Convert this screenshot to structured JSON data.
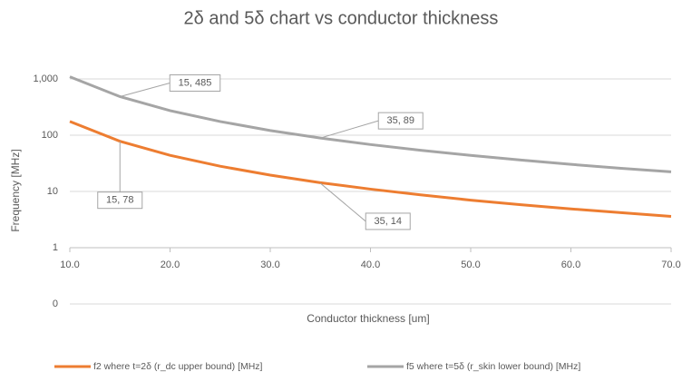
{
  "chart_data": {
    "type": "line",
    "title": "2δ and 5δ chart vs conductor thickness",
    "x_label": "Conductor thickness [um]",
    "y_label": "Frequency [MHz]",
    "x": [
      10,
      15,
      20,
      25,
      30,
      35,
      40,
      45,
      50,
      55,
      60,
      65,
      70
    ],
    "series": [
      {
        "name": "f2 where t=2δ (r_dc upper bound) [MHz]",
        "color": "#ed7d31",
        "values": [
          175.5,
          78,
          43.9,
          28.1,
          19.5,
          14.3,
          11.0,
          8.7,
          7.0,
          5.8,
          4.9,
          4.2,
          3.6
        ]
      },
      {
        "name": "f5 where t=5δ (r_skin lower bound)  [MHz]",
        "color": "#a5a5a5",
        "values": [
          1091,
          485,
          273,
          175,
          121,
          89,
          68.2,
          53.9,
          43.7,
          36.1,
          30.3,
          25.8,
          22.3
        ]
      }
    ],
    "xlim": [
      10,
      70
    ],
    "xticks": [
      {
        "value": 10,
        "label": "10.0"
      },
      {
        "value": 20,
        "label": "20.0"
      },
      {
        "value": 30,
        "label": "30.0"
      },
      {
        "value": 40,
        "label": "40.0"
      },
      {
        "value": 50,
        "label": "50.0"
      },
      {
        "value": 60,
        "label": "60.0"
      },
      {
        "value": 70,
        "label": "70.0"
      }
    ],
    "ylim": [
      0.1,
      1000
    ],
    "y_log": true,
    "yticks": [
      {
        "value": 0.1,
        "label": "0"
      },
      1,
      10,
      100,
      {
        "value": 1000,
        "label": "1,000"
      }
    ],
    "x_axis_crosses": 1,
    "grid": true,
    "legend_position": "bottom",
    "annotations": [
      {
        "label": "15, 485",
        "x": 15,
        "y": 485
      },
      {
        "label": "35, 89",
        "x": 35,
        "y": 89
      },
      {
        "label": "15, 78",
        "x": 15,
        "y": 78
      },
      {
        "label": "35, 14",
        "x": 35,
        "y": 14
      }
    ]
  }
}
